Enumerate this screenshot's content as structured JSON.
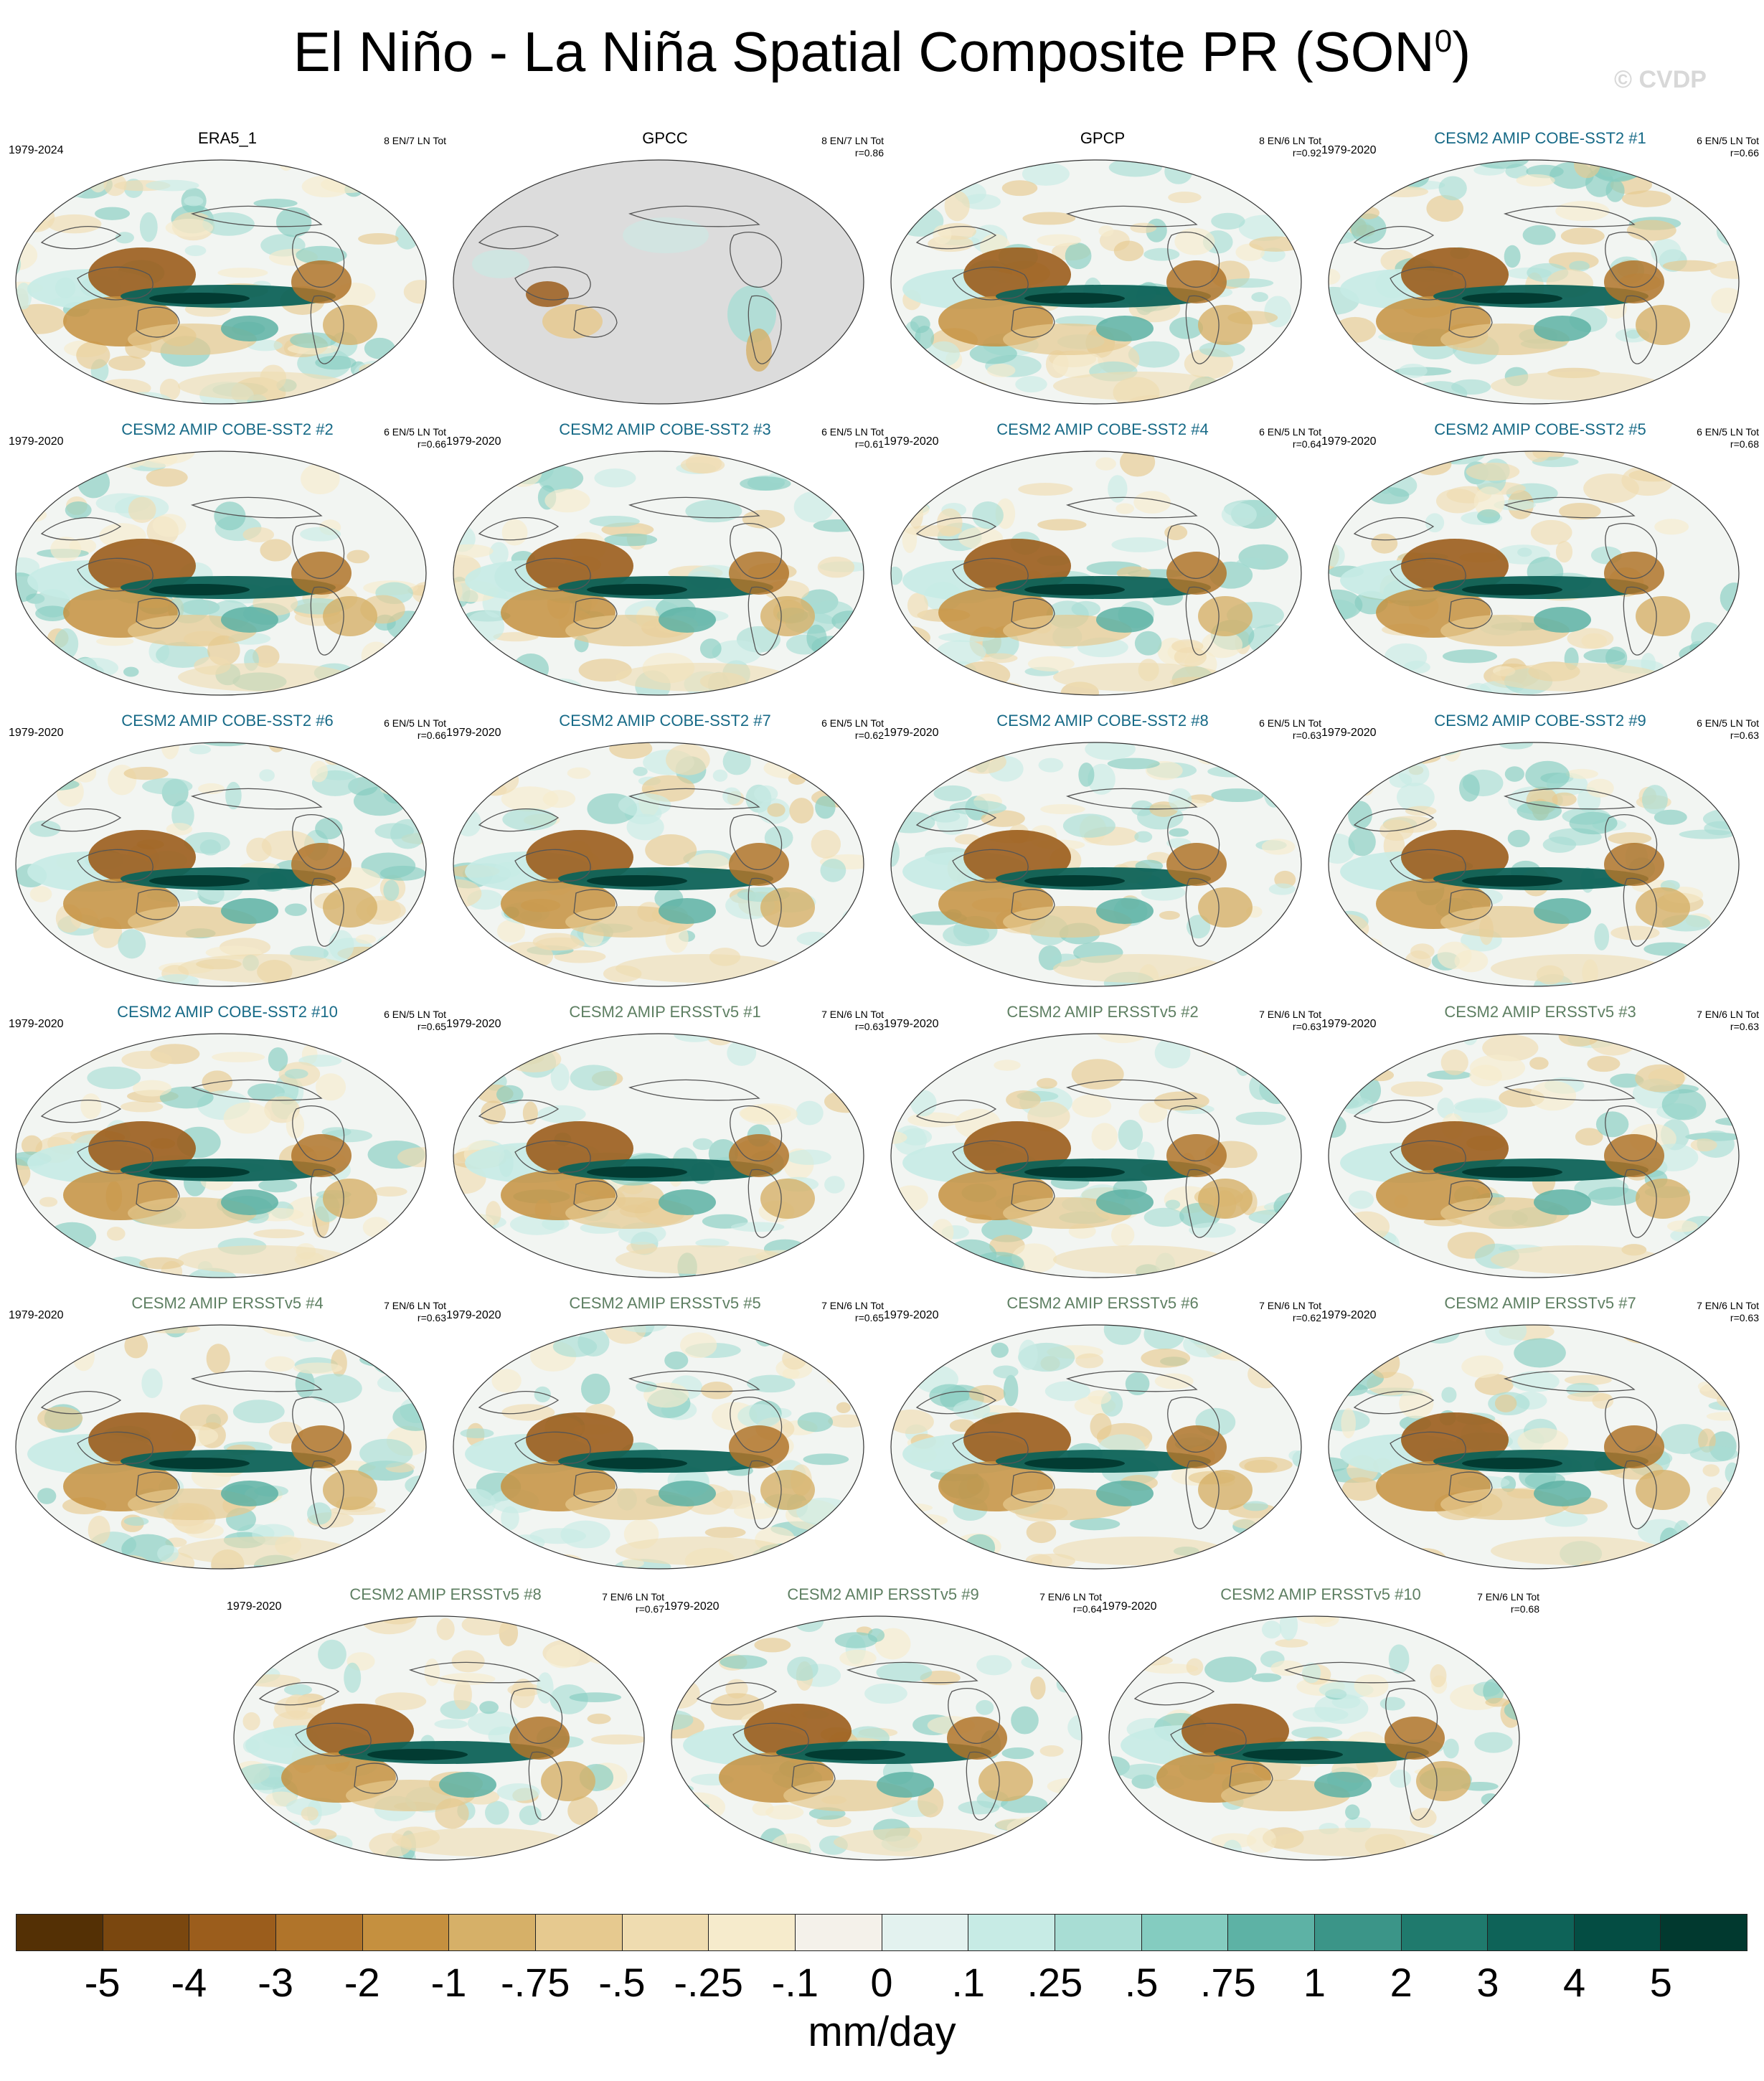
{
  "title": {
    "main": "El Niño - La Niña Spatial Composite PR (SON",
    "superscript": "0",
    "close": ")"
  },
  "watermark": "© CVDP",
  "colors": {
    "cobe_label": "#176a87",
    "ersst_label": "#5e7f62",
    "obs_label": "#000000",
    "land_missing": "#dcdcdc",
    "ocean_neutral": "#f2f5f2"
  },
  "panels": [
    {
      "name": "ERA5_1",
      "years": "1979-2024",
      "info1": "8 EN/7 LN Tot",
      "info2": "",
      "kind": "obs"
    },
    {
      "name": "GPCC",
      "years": "",
      "info1": "8 EN/7 LN Tot",
      "info2": "r=0.86",
      "kind": "gpcc"
    },
    {
      "name": "GPCP",
      "years": "",
      "info1": "8 EN/6 LN Tot",
      "info2": "r=0.92",
      "kind": "obs"
    },
    {
      "name": "CESM2 AMIP COBE-SST2 #1",
      "years": "1979-2020",
      "info1": "6 EN/5 LN Tot",
      "info2": "r=0.66",
      "kind": "cobe"
    },
    {
      "name": "CESM2 AMIP COBE-SST2 #2",
      "years": "1979-2020",
      "info1": "6 EN/5 LN Tot",
      "info2": "r=0.66",
      "kind": "cobe"
    },
    {
      "name": "CESM2 AMIP COBE-SST2 #3",
      "years": "1979-2020",
      "info1": "6 EN/5 LN Tot",
      "info2": "r=0.61",
      "kind": "cobe"
    },
    {
      "name": "CESM2 AMIP COBE-SST2 #4",
      "years": "1979-2020",
      "info1": "6 EN/5 LN Tot",
      "info2": "r=0.64",
      "kind": "cobe"
    },
    {
      "name": "CESM2 AMIP COBE-SST2 #5",
      "years": "1979-2020",
      "info1": "6 EN/5 LN Tot",
      "info2": "r=0.68",
      "kind": "cobe"
    },
    {
      "name": "CESM2 AMIP COBE-SST2 #6",
      "years": "1979-2020",
      "info1": "6 EN/5 LN Tot",
      "info2": "r=0.66",
      "kind": "cobe"
    },
    {
      "name": "CESM2 AMIP COBE-SST2 #7",
      "years": "1979-2020",
      "info1": "6 EN/5 LN Tot",
      "info2": "r=0.62",
      "kind": "cobe"
    },
    {
      "name": "CESM2 AMIP COBE-SST2 #8",
      "years": "1979-2020",
      "info1": "6 EN/5 LN Tot",
      "info2": "r=0.63",
      "kind": "cobe"
    },
    {
      "name": "CESM2 AMIP COBE-SST2 #9",
      "years": "1979-2020",
      "info1": "6 EN/5 LN Tot",
      "info2": "r=0.63",
      "kind": "cobe"
    },
    {
      "name": "CESM2 AMIP COBE-SST2 #10",
      "years": "1979-2020",
      "info1": "6 EN/5 LN Tot",
      "info2": "r=0.65",
      "kind": "cobe"
    },
    {
      "name": "CESM2 AMIP ERSSTv5 #1",
      "years": "1979-2020",
      "info1": "7 EN/6 LN Tot",
      "info2": "r=0.63",
      "kind": "ersst"
    },
    {
      "name": "CESM2 AMIP ERSSTv5 #2",
      "years": "1979-2020",
      "info1": "7 EN/6 LN Tot",
      "info2": "r=0.63",
      "kind": "ersst"
    },
    {
      "name": "CESM2 AMIP ERSSTv5 #3",
      "years": "1979-2020",
      "info1": "7 EN/6 LN Tot",
      "info2": "r=0.63",
      "kind": "ersst"
    },
    {
      "name": "CESM2 AMIP ERSSTv5 #4",
      "years": "1979-2020",
      "info1": "7 EN/6 LN Tot",
      "info2": "r=0.63",
      "kind": "ersst"
    },
    {
      "name": "CESM2 AMIP ERSSTv5 #5",
      "years": "1979-2020",
      "info1": "7 EN/6 LN Tot",
      "info2": "r=0.65",
      "kind": "ersst"
    },
    {
      "name": "CESM2 AMIP ERSSTv5 #6",
      "years": "1979-2020",
      "info1": "7 EN/6 LN Tot",
      "info2": "r=0.62",
      "kind": "ersst"
    },
    {
      "name": "CESM2 AMIP ERSSTv5 #7",
      "years": "1979-2020",
      "info1": "7 EN/6 LN Tot",
      "info2": "r=0.63",
      "kind": "ersst"
    },
    {
      "name": "CESM2 AMIP ERSSTv5 #8",
      "years": "1979-2020",
      "info1": "7 EN/6 LN Tot",
      "info2": "r=0.67",
      "kind": "ersst"
    },
    {
      "name": "CESM2 AMIP ERSSTv5 #9",
      "years": "1979-2020",
      "info1": "7 EN/6 LN Tot",
      "info2": "r=0.64",
      "kind": "ersst"
    },
    {
      "name": "CESM2 AMIP ERSSTv5 #10",
      "years": "1979-2020",
      "info1": "7 EN/6 LN Tot",
      "info2": "r=0.68",
      "kind": "ersst"
    }
  ],
  "colorbar": {
    "colors": [
      "#543005",
      "#7a470f",
      "#9b5d1c",
      "#b0742a",
      "#c5903f",
      "#d6b068",
      "#e6c98f",
      "#efdcb0",
      "#f6ebcc",
      "#f4f1ea",
      "#e3f2ef",
      "#c7ebe5",
      "#a8ddd4",
      "#84ccc0",
      "#5db2a5",
      "#3b9588",
      "#1f7a6d",
      "#0e6358",
      "#044d43",
      "#01392f"
    ],
    "ticks": [
      "-5",
      "-4",
      "-3",
      "-2",
      "-1",
      "-.75",
      "-.5",
      "-.25",
      "-.1",
      "0",
      ".1",
      ".25",
      ".5",
      ".75",
      "1",
      "2",
      "3",
      "4",
      "5"
    ],
    "units": "mm/day"
  }
}
